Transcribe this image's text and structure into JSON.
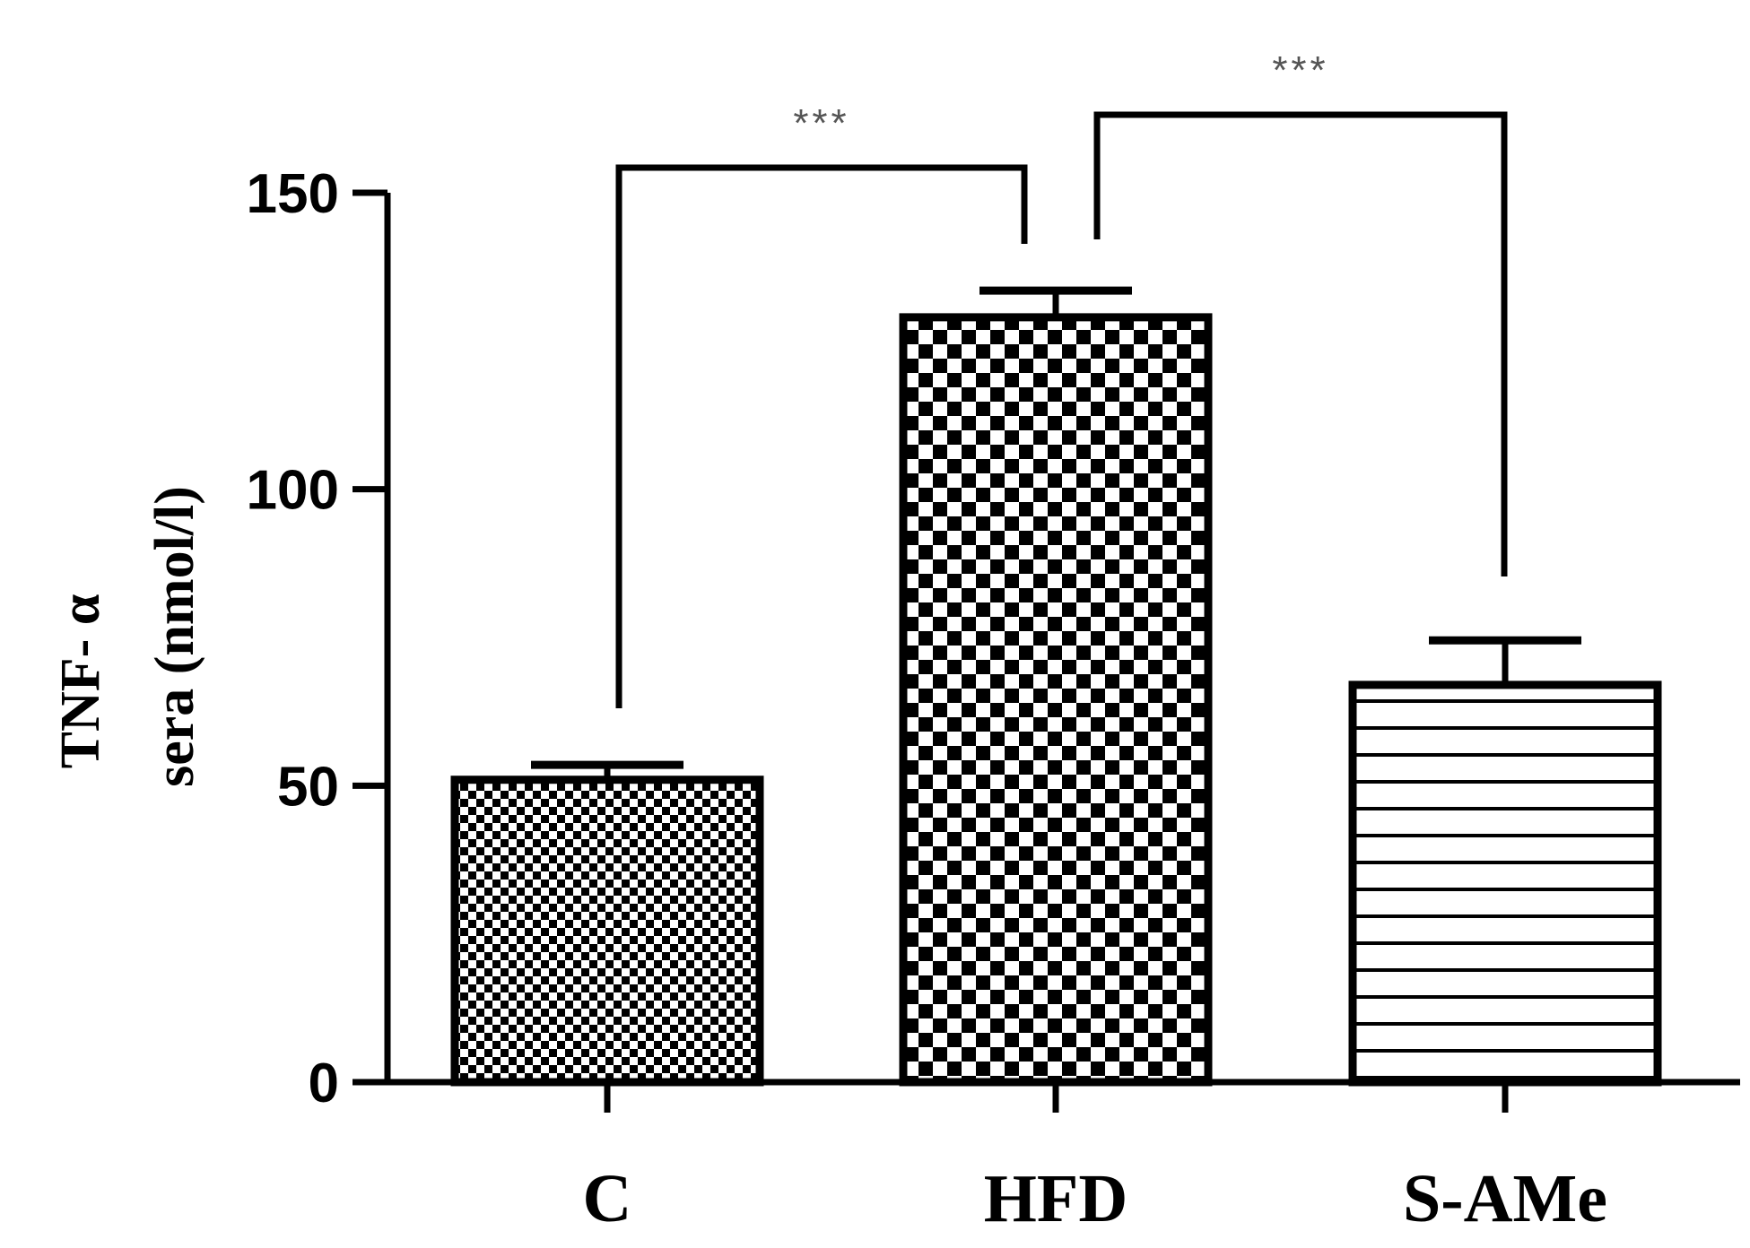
{
  "chart_data": {
    "type": "bar",
    "categories": [
      "C",
      "HFD",
      "S-AMe"
    ],
    "values": [
      51,
      129,
      67
    ],
    "errors": [
      2.5,
      4.5,
      7.5
    ],
    "ylabel_lines": [
      "TNF- α",
      "sera (nmol/l)"
    ],
    "ylim": [
      0,
      150
    ],
    "yticks": [
      0,
      50,
      100,
      150
    ],
    "grid": false,
    "legend": "none",
    "bar_patterns": [
      "fine-checker",
      "coarse-checker",
      "horizontal-lines"
    ],
    "significance": [
      {
        "from": 0,
        "to": 1,
        "label": "***"
      },
      {
        "from": 1,
        "to": 2,
        "label": "***"
      }
    ]
  }
}
